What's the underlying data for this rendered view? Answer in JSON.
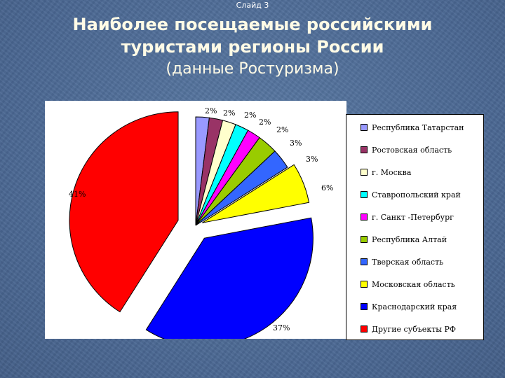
{
  "slide_label": "Слайд 3",
  "title_line1": "Наиболее посещаемые российскими",
  "title_line2": "туристами регионы России",
  "subtitle": "(данные Ростуризма)",
  "chart_data": {
    "type": "pie",
    "title": "Наиболее посещаемые российскими туристами регионы России",
    "legend_position": "right",
    "labels": [
      "Республика Татарстан",
      "Ростовская область",
      "г. Москва",
      "Ставропольский край",
      "г. Санкт -Петербург",
      "Республика Алтай",
      "Тверская область",
      "Московская область",
      "Краснодарский края",
      "Другие субъекты РФ"
    ],
    "values": [
      2,
      2,
      2,
      2,
      2,
      3,
      3,
      6,
      37,
      41
    ],
    "value_labels": [
      "2%",
      "2%",
      "2%",
      "2%",
      "2%",
      "3%",
      "3%",
      "6%",
      "37%",
      "41%"
    ],
    "colors": [
      "#9999ff",
      "#993366",
      "#ffffcc",
      "#00ffff",
      "#ff00ff",
      "#99cc00",
      "#3366ff",
      "#ffff00",
      "#0000ff",
      "#ff0000"
    ],
    "exploded": true
  }
}
